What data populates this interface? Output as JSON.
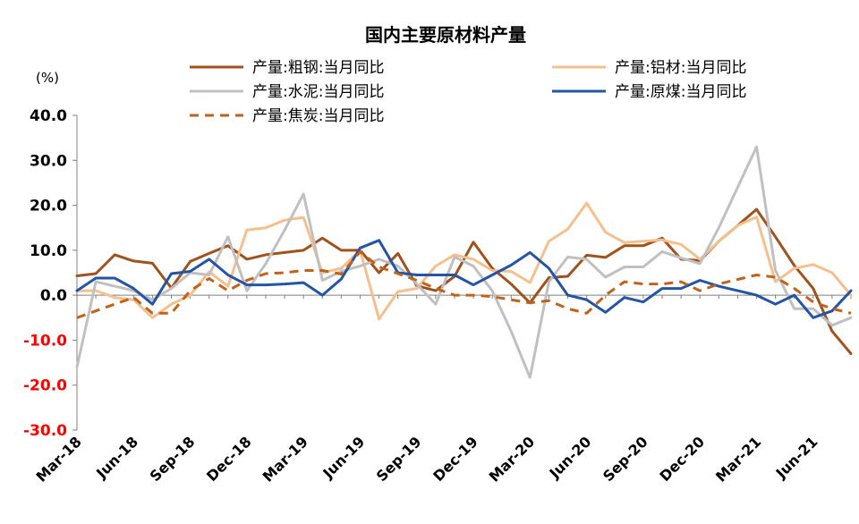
{
  "chart_data": {
    "type": "line",
    "title": "国内主要原材料产量",
    "ylabel": "(%)",
    "xlabel": "",
    "ylim": [
      -30,
      40
    ],
    "yticks": [
      40,
      30,
      20,
      10,
      0,
      -10,
      -20,
      -30
    ],
    "ytick_labels": [
      "40.0",
      "30.0",
      "20.0",
      "10.0",
      "0.0",
      "-10.0",
      "-20.0",
      "-30.0"
    ],
    "negative_tick_color": "#ff0000",
    "x": [
      "Mar-18",
      "Apr-18",
      "May-18",
      "Jun-18",
      "Jul-18",
      "Aug-18",
      "Sep-18",
      "Oct-18",
      "Nov-18",
      "Dec-18",
      "Jan-19",
      "Feb-19",
      "Mar-19",
      "Apr-19",
      "May-19",
      "Jun-19",
      "Jul-19",
      "Aug-19",
      "Sep-19",
      "Oct-19",
      "Nov-19",
      "Dec-19",
      "Jan-20",
      "Feb-20",
      "Mar-20",
      "Apr-20",
      "May-20",
      "Jun-20",
      "Jul-20",
      "Aug-20",
      "Sep-20",
      "Oct-20",
      "Nov-20",
      "Dec-20",
      "Jan-21",
      "Feb-21",
      "Mar-21",
      "Apr-21",
      "May-21",
      "Jun-21",
      "Jul-21",
      "Aug-21"
    ],
    "xtick_labels": [
      "Mar-18",
      "Jun-18",
      "Sep-18",
      "Dec-18",
      "Mar-19",
      "Jun-19",
      "Sep-19",
      "Dec-19",
      "Mar-20",
      "Jun-20",
      "Sep-20",
      "Dec-20",
      "Mar-21",
      "Jun-21"
    ],
    "grid": false,
    "legend_position": "top",
    "series": [
      {
        "name": "产量:粗钢:当月同比",
        "color": "#a0521d",
        "style": "solid",
        "values": [
          4.3,
          4.8,
          9.0,
          7.6,
          7.1,
          1.6,
          7.5,
          9.3,
          11.0,
          8.0,
          9.0,
          9.5,
          10.0,
          12.7,
          10.0,
          10.0,
          5.0,
          9.3,
          2.1,
          1.0,
          4.2,
          11.8,
          6.0,
          2.5,
          -1.7,
          3.9,
          4.2,
          8.9,
          8.4,
          11.0,
          11.0,
          12.7,
          8.0,
          7.7,
          12.0,
          15.5,
          19.1,
          13.0,
          6.6,
          1.5,
          -8.0,
          -13.0
        ]
      },
      {
        "name": "产量:铝材:当月同比",
        "color": "#f5c08e",
        "style": "solid",
        "values": [
          1.0,
          1.0,
          -0.5,
          -1.0,
          -5.0,
          -2.0,
          0.0,
          5.2,
          2.0,
          14.5,
          15.0,
          16.7,
          17.3,
          5.0,
          6.0,
          10.0,
          -5.3,
          0.8,
          1.5,
          6.5,
          9.0,
          8.0,
          5.5,
          5.3,
          2.8,
          12.0,
          14.7,
          20.5,
          14.0,
          11.7,
          12.0,
          12.3,
          11.3,
          8.0,
          12.0,
          15.5,
          17.4,
          3.0,
          6.0,
          6.8,
          5.0,
          0.0
        ]
      },
      {
        "name": "产量:水泥:当月同比",
        "color": "#c0c0c0",
        "style": "solid",
        "values": [
          -16.0,
          3.0,
          2.0,
          1.0,
          -1.0,
          1.5,
          5.0,
          4.5,
          13.0,
          1.0,
          7.0,
          14.5,
          22.5,
          3.3,
          5.3,
          6.5,
          8.0,
          6.5,
          2.5,
          -2.0,
          8.5,
          6.5,
          1.0,
          -8.0,
          -18.3,
          3.0,
          8.5,
          8.0,
          4.0,
          6.3,
          6.3,
          9.7,
          8.3,
          7.0,
          15.0,
          24.0,
          33.0,
          5.5,
          -3.0,
          -3.0,
          -6.7,
          -5.0
        ]
      },
      {
        "name": "产量:原煤:当月同比",
        "color": "#2454a4",
        "style": "solid",
        "values": [
          1.0,
          3.8,
          3.8,
          1.5,
          -2.0,
          4.8,
          5.3,
          8.0,
          4.5,
          2.3,
          2.3,
          2.5,
          2.8,
          0.0,
          3.6,
          10.5,
          12.2,
          5.0,
          4.5,
          4.5,
          4.5,
          2.3,
          4.5,
          6.7,
          9.5,
          6.0,
          0.0,
          -1.0,
          -3.8,
          -0.5,
          -1.5,
          1.5,
          1.5,
          3.3,
          2.0,
          1.0,
          0.0,
          -2.0,
          0.0,
          -5.0,
          -3.5,
          1.0
        ]
      },
      {
        "name": "产量:焦炭:当月同比",
        "color": "#c0621c",
        "style": "dashed",
        "values": [
          -5.0,
          -3.5,
          -2.0,
          -0.5,
          -4.0,
          -4.0,
          1.0,
          3.7,
          1.0,
          3.3,
          4.8,
          5.0,
          5.5,
          5.5,
          4.7,
          9.7,
          6.3,
          4.8,
          3.3,
          1.5,
          0.0,
          0.0,
          -0.3,
          -1.0,
          -1.7,
          -1.2,
          -3.0,
          -4.0,
          0.0,
          3.0,
          2.5,
          2.5,
          3.0,
          1.0,
          2.5,
          3.5,
          4.5,
          4.0,
          1.5,
          -1.5,
          -3.0,
          -4.0
        ]
      }
    ]
  }
}
